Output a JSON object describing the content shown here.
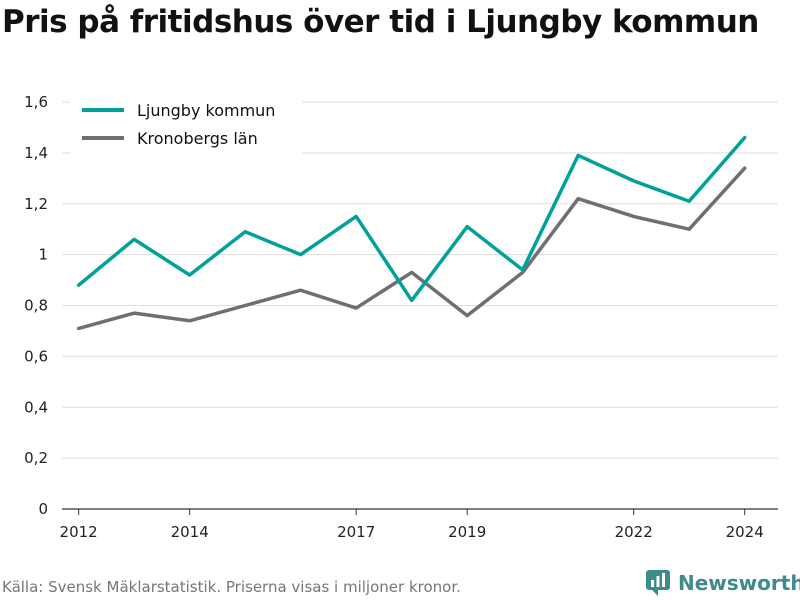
{
  "title": "Pris på fritidshus över tid i Ljungby kommun",
  "footer": "Källa: Svensk Mäklarstatistik. Priserna visas i miljoner kronor.",
  "brand": {
    "name": "Newsworthy",
    "color": "#3e8b8b",
    "icon": "newsworthy-logo-icon"
  },
  "chart_data": {
    "type": "line",
    "x": [
      2012,
      2013,
      2014,
      2015,
      2016,
      2017,
      2018,
      2019,
      2020,
      2021,
      2022,
      2023,
      2024
    ],
    "x_ticks": [
      "2012",
      "2014",
      "2017",
      "2019",
      "2022",
      "2024"
    ],
    "y_ticks": [
      "0",
      "0,2",
      "0,4",
      "0,6",
      "0,8",
      "1",
      "1,2",
      "1,4",
      "1,6"
    ],
    "ylim": [
      0,
      1.6
    ],
    "xlim": [
      2011.7,
      2024.6
    ],
    "grid": true,
    "legend_position": "top-left",
    "series": [
      {
        "name": "Ljungby kommun",
        "color": "#00a19a",
        "values": [
          0.88,
          1.06,
          0.92,
          1.09,
          1.0,
          1.15,
          0.82,
          1.11,
          0.94,
          1.39,
          1.29,
          1.21,
          1.46
        ]
      },
      {
        "name": "Kronobergs län",
        "color": "#6e6e73",
        "values": [
          0.71,
          0.77,
          0.74,
          0.8,
          0.86,
          0.79,
          0.93,
          0.76,
          0.93,
          1.22,
          1.15,
          1.1,
          1.34
        ]
      }
    ]
  }
}
